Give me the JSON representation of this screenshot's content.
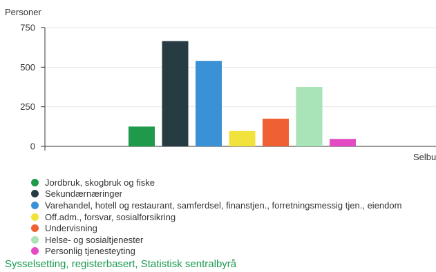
{
  "chart_data": {
    "type": "bar",
    "ylabel": "Personer",
    "xlabel": "",
    "categories": [
      "Selbu"
    ],
    "category_label_shown": "Selbu",
    "ylim": [
      0,
      750
    ],
    "yticks": [
      "750",
      "500",
      "250",
      "0"
    ],
    "ytick_values": [
      750,
      500,
      250,
      0
    ],
    "grid": true,
    "legend_position": "bottom-left",
    "series": [
      {
        "name": "Jordbruk, skogbruk og fiske",
        "values": [
          125
        ],
        "color": "#1e9a4a"
      },
      {
        "name": "Sekundærnæringer",
        "values": [
          665
        ],
        "color": "#263c42"
      },
      {
        "name": "Varehandel, hotell og restaurant, samferdsel, finanstjen., forretningsmessig tjen., eiendom",
        "values": [
          540
        ],
        "color": "#3b91d6"
      },
      {
        "name": "Off.adm., forsvar, sosialforsikring",
        "values": [
          97
        ],
        "color": "#f2e23c"
      },
      {
        "name": "Undervisning",
        "values": [
          175
        ],
        "color": "#f06035"
      },
      {
        "name": "Helse- og sosialtjenester",
        "values": [
          375
        ],
        "color": "#a9e3b8"
      },
      {
        "name": "Personlig tjenesteyting",
        "values": [
          47
        ],
        "color": "#e44ac4"
      }
    ]
  },
  "source": "Sysselsetting, registerbasert, Statistisk sentralbyrå"
}
